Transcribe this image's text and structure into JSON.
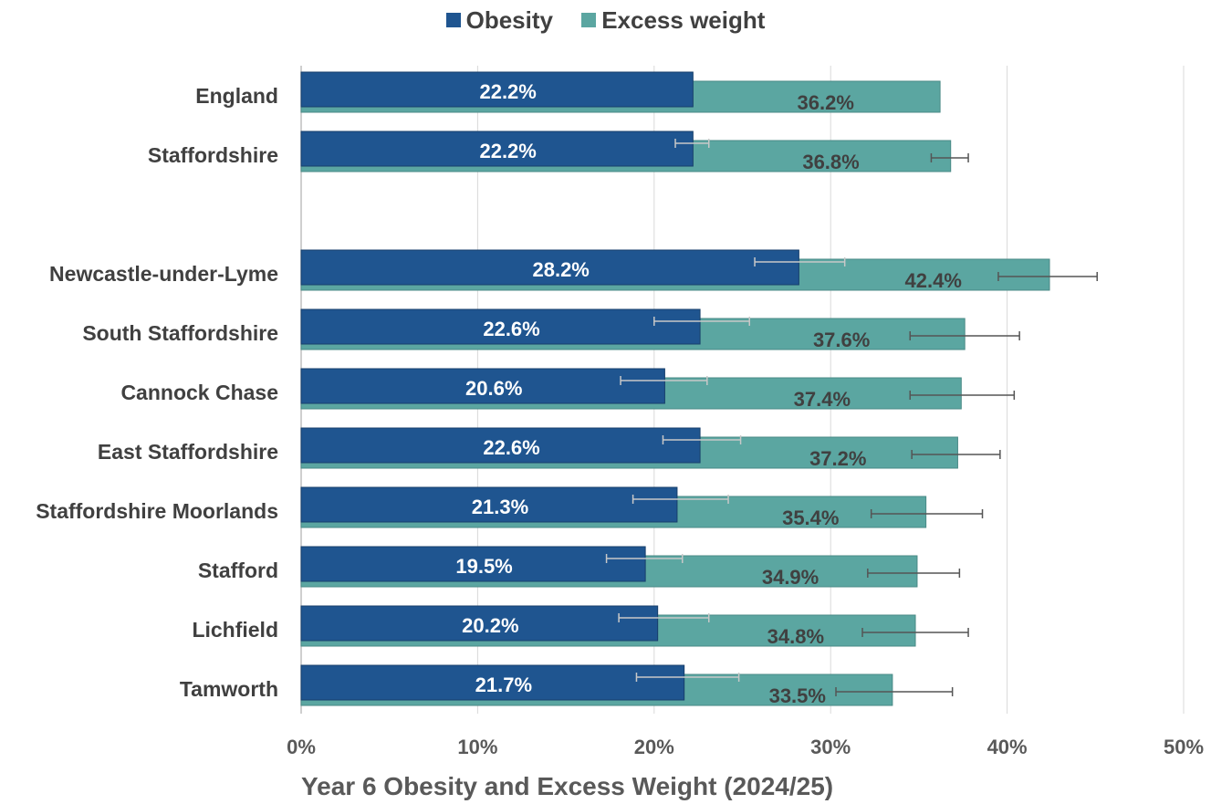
{
  "chart_data": {
    "type": "bar",
    "orientation": "horizontal",
    "legend": {
      "placement": "top-center",
      "items": [
        {
          "label": "Obesity",
          "color": "#1f5590"
        },
        {
          "label": "Excess weight",
          "color": "#5ba6a1"
        }
      ]
    },
    "xlabel": "Year 6 Obesity and Excess Weight (2024/25)",
    "xlim": [
      0,
      50
    ],
    "ticks": [
      "0%",
      "10%",
      "20%",
      "30%",
      "40%",
      "50%"
    ],
    "grid": true,
    "categories": [
      "England",
      "Staffordshire",
      "",
      "Newcastle-under-Lyme",
      "South Staffordshire",
      "Cannock Chase",
      "East Staffordshire",
      "Staffordshire Moorlands",
      "Stafford",
      "Lichfield",
      "Tamworth"
    ],
    "series": [
      {
        "name": "Obesity",
        "color": "#1f5590",
        "values": [
          22.2,
          22.2,
          null,
          28.2,
          22.6,
          20.6,
          22.6,
          21.3,
          19.5,
          20.2,
          21.7
        ],
        "labels": [
          "22.2%",
          "22.2%",
          "",
          "28.2%",
          "22.6%",
          "20.6%",
          "22.6%",
          "21.3%",
          "19.5%",
          "20.2%",
          "21.7%"
        ],
        "error_low": [
          null,
          21.2,
          null,
          25.7,
          20.0,
          18.1,
          20.5,
          18.8,
          17.3,
          18.0,
          19.0
        ],
        "error_high": [
          null,
          23.1,
          null,
          30.8,
          25.4,
          23.0,
          24.9,
          24.2,
          21.6,
          23.1,
          24.8
        ]
      },
      {
        "name": "Excess weight",
        "color": "#5ba6a1",
        "values": [
          36.2,
          36.8,
          null,
          42.4,
          37.6,
          37.4,
          37.2,
          35.4,
          34.9,
          34.8,
          33.5
        ],
        "labels": [
          "36.2%",
          "36.8%",
          "",
          "42.4%",
          "37.6%",
          "37.4%",
          "37.2%",
          "35.4%",
          "34.9%",
          "34.8%",
          "33.5%"
        ],
        "error_low": [
          null,
          35.7,
          null,
          39.5,
          34.5,
          34.5,
          34.6,
          32.3,
          32.1,
          31.8,
          30.3
        ],
        "error_high": [
          null,
          37.8,
          null,
          45.1,
          40.7,
          40.4,
          39.6,
          38.6,
          37.3,
          37.8,
          36.9
        ]
      }
    ]
  }
}
